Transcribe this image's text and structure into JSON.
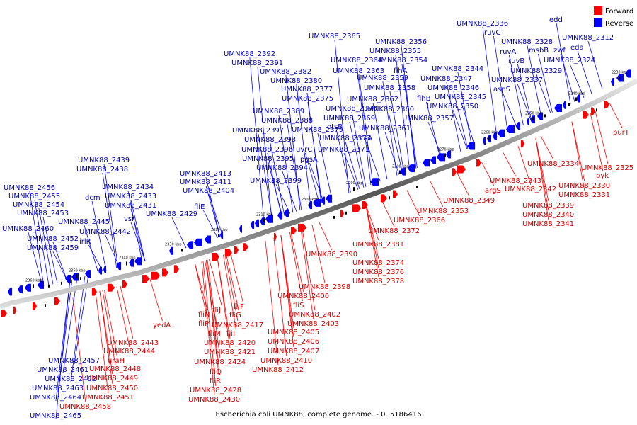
{
  "caption": "Escherichia coli UMNK88, complete genome. - 0..5186416",
  "legend": {
    "forward_label": "Forward",
    "reverse_label": "Reverse",
    "forward_color": "#ff0000",
    "reverse_color": "#0000ff"
  },
  "ticks": [
    "2360 kbp",
    "2350 kbp",
    "2340 kbp",
    "2330 kbp",
    "2320 kbp",
    "2310 kbp",
    "2300 kbp",
    "2290 kbp",
    "2280 kbp",
    "2270 kbp",
    "2260 kbp",
    "2250 kbp",
    "2240 kbp",
    "2230 kbp"
  ],
  "reverse_labels": [
    "UMNK88_2456",
    "UMNK88_2455",
    "UMNK88_2454",
    "UMNK88_2453",
    "UMNK88_2460",
    "UMNK88_2452",
    "UMNK88_2459",
    "UMNK88_2439",
    "UMNK88_2438",
    "dcm",
    "UMNK88_2434",
    "UMNK88_2433",
    "UMNK88_2431",
    "UMNK88_2429",
    "vsr",
    "UMNK88_2445",
    "UMNK88_2442",
    "irlR",
    "UMNK88_2413",
    "UMNK88_2411",
    "fliE",
    "UMNK88_2404",
    "UMNK88_2392",
    "UMNK88_2391",
    "UMNK88_2382",
    "UMNK88_2380",
    "UMNK88_2377",
    "UMNK88_2375",
    "UMNK88_2389",
    "UMNK88_2388",
    "UMNK88_2397",
    "UMNK88_2393",
    "UMNK88_2396",
    "UMNK88_2395",
    "UMNK88_2394",
    "UMNK88_2399",
    "UMNK88_2379",
    "uvrC",
    "pgsA",
    "UMNK88_2373",
    "UMNK88_2371",
    "UMNK88_2370",
    "UMNK88_2369",
    "otsB",
    "otsA",
    "UMNK88_2365",
    "UMNK88_2364",
    "UMNK88_2363",
    "UMNK88_2362",
    "UMNK88_2359",
    "UMNK88_2358",
    "UMNK88_2360",
    "UMNK88_2361",
    "UMNK88_2356",
    "UMNK88_2355",
    "UMNK88_2354",
    "flhA",
    "flhB",
    "UMNK88_2357",
    "UMNK88_2347",
    "UMNK88_2346",
    "UMNK88_2345",
    "UMNK88_2350",
    "UMNK88_2344",
    "UMNK88_2336",
    "ruvC",
    "ruvA",
    "ruvB",
    "UMNK88_2337",
    "aspS",
    "UMNK88_2328",
    "msbB",
    "UMNK88_2329",
    "zwf",
    "edd",
    "UMNK88_2312",
    "eda",
    "UMNK88_2324",
    "UMNK88_2457",
    "UMNK88_2461",
    "UMNK88_2462",
    "UMNK88_2463",
    "UMNK88_2464",
    "UMNK88_2465"
  ],
  "forward_labels": [
    "UMNK88_2443",
    "UMNK88_2444",
    "uraH",
    "UMNK88_2448",
    "UMNK88_2449",
    "UMNK88_2450",
    "UMNK88_2451",
    "UMNK88_2458",
    "yedA",
    "fliN",
    "fliJ",
    "fliF",
    "fliP",
    "fliG",
    "fliM",
    "UMNK88_2417",
    "fliI",
    "UMNK88_2420",
    "UMNK88_2421",
    "UMNK88_2424",
    "fliQ",
    "fliR",
    "UMNK88_2428",
    "UMNK88_2430",
    "UMNK88_2398",
    "UMNK88_2400",
    "fliS",
    "UMNK88_2402",
    "UMNK88_2403",
    "UMNK88_2405",
    "UMNK88_2406",
    "UMNK88_2407",
    "UMNK88_2410",
    "UMNK88_2412",
    "UMNK88_2390",
    "UMNK88_2381",
    "UMNK88_2374",
    "UMNK88_2376",
    "UMNK88_2378",
    "UMNK88_2372",
    "UMNK88_2366",
    "UMNK88_2353",
    "UMNK88_2349",
    "argS",
    "UMNK88_2343",
    "UMNK88_2342",
    "UMNK88_2339",
    "UMNK88_2340",
    "UMNK88_2341",
    "UMNK88_2334",
    "UMNK88_2330",
    "UMNK88_2331",
    "pyk",
    "UMNK88_2325",
    "purT"
  ]
}
